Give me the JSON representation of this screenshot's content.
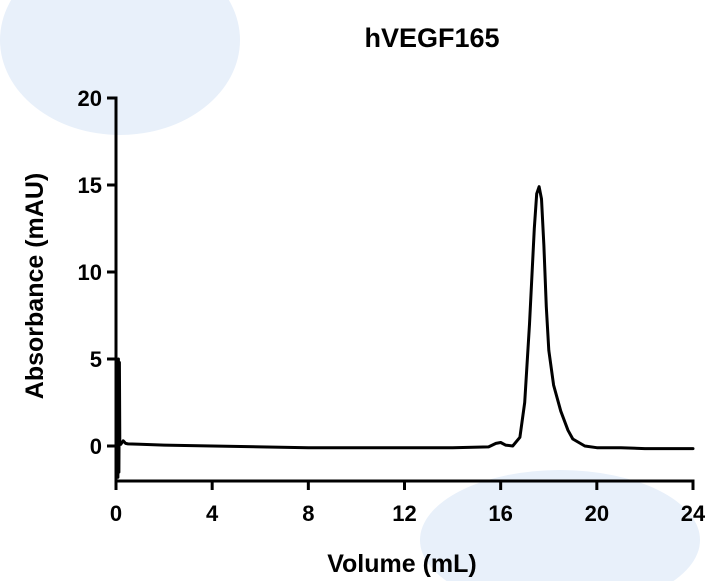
{
  "chart_data": {
    "type": "line",
    "title": "hVEGF165",
    "xlabel": "Volume (mL)",
    "ylabel": "Absorbance (mAU)",
    "xlim": [
      0,
      24
    ],
    "ylim": [
      -2,
      20
    ],
    "xticks": [
      0,
      4,
      8,
      12,
      16,
      20,
      24
    ],
    "yticks": [
      0,
      5,
      10,
      15,
      20
    ],
    "grid": false,
    "legend": "none",
    "line_color": "#000000",
    "series": [
      {
        "x": [
          0.0,
          0.08,
          0.1,
          0.12,
          0.14,
          0.16,
          0.2,
          0.3,
          0.4,
          0.5,
          1,
          2,
          4,
          6,
          8,
          10,
          12,
          14,
          15.5,
          15.8,
          16.0,
          16.2,
          16.5,
          16.8,
          17.0,
          17.2,
          17.4,
          17.5,
          17.6,
          17.7,
          17.8,
          17.9,
          18.0,
          18.2,
          18.5,
          18.8,
          19.0,
          19.5,
          20,
          21,
          22,
          23,
          24
        ],
        "y": [
          0.0,
          -1.8,
          5.0,
          -1.5,
          4.8,
          0.2,
          0.1,
          0.3,
          0.15,
          0.12,
          0.1,
          0.05,
          0.0,
          -0.05,
          -0.1,
          -0.1,
          -0.1,
          -0.1,
          -0.05,
          0.15,
          0.2,
          0.05,
          0.0,
          0.5,
          2.5,
          7.0,
          12.5,
          14.5,
          14.9,
          14.2,
          11.5,
          8.0,
          5.5,
          3.5,
          2.0,
          0.9,
          0.4,
          0.0,
          -0.1,
          -0.1,
          -0.15,
          -0.15,
          -0.15
        ]
      }
    ]
  }
}
